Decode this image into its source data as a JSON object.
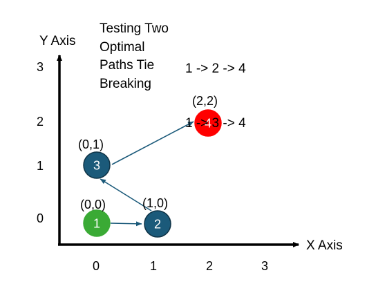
{
  "title": "Testing Two\nOptimal\nPaths Tie\nBreaking",
  "paths": [
    "1 -> 2 -> 4",
    "1 -> 3 -> 4"
  ],
  "axes": {
    "x_label": "X Axis",
    "y_label": "Y Axis",
    "x_ticks": [
      "0",
      "1",
      "2",
      "3"
    ],
    "y_ticks": [
      "0",
      "1",
      "2",
      "3"
    ]
  },
  "nodes": [
    {
      "id": "1",
      "coord_label": "(0,0)",
      "color": "#3aaa35"
    },
    {
      "id": "2",
      "coord_label": "(1,0)",
      "color": "#1b5a7a"
    },
    {
      "id": "3",
      "coord_label": "(0,1)",
      "color": "#1b5a7a"
    },
    {
      "id": "4",
      "coord_label": "(2,2)",
      "color": "#ff0000"
    }
  ],
  "edges": [
    {
      "from": "1",
      "to": "2"
    },
    {
      "from": "2",
      "to": "3"
    },
    {
      "from": "3",
      "to": "4"
    }
  ],
  "colors": {
    "axis": "#000000",
    "edge": "#1b5a7a",
    "node_border": "#0f3346",
    "node_text": "#ffffff"
  }
}
